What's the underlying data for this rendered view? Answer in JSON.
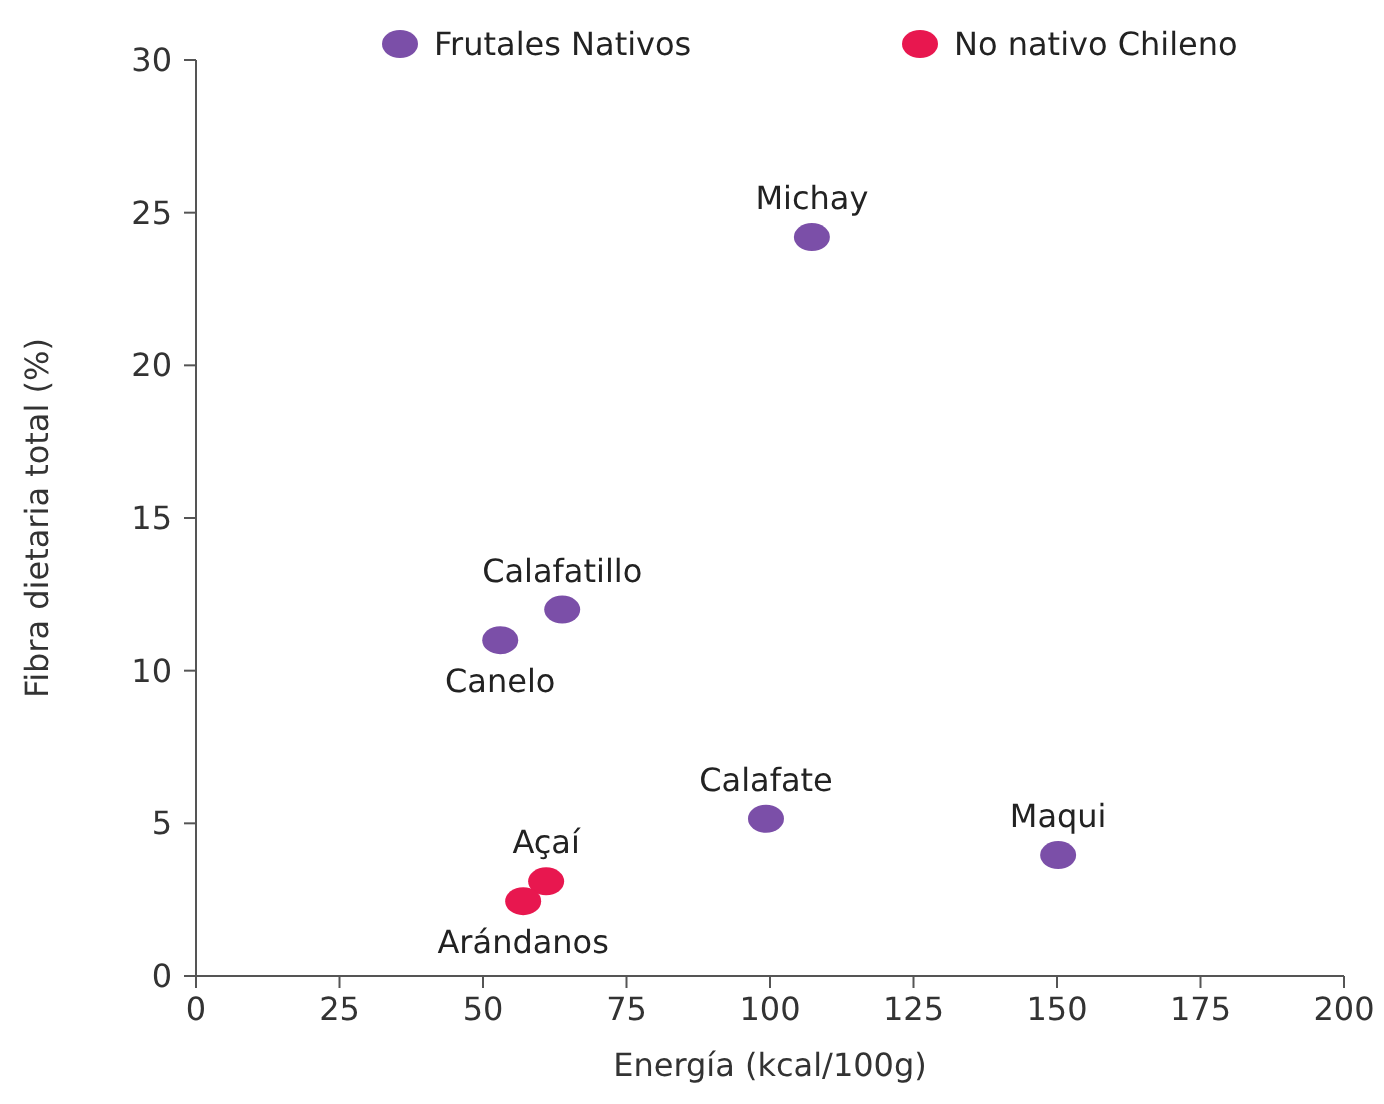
{
  "chart_data": {
    "type": "scatter",
    "xlabel": "Energía (kcal/100g)",
    "ylabel": "Fibra dietaria total (%)",
    "xlim": [
      0,
      200
    ],
    "xticks": [
      0,
      25,
      50,
      75,
      100,
      125,
      150,
      175,
      200
    ],
    "ylim": [
      0,
      30
    ],
    "yticks": [
      0,
      5,
      10,
      15,
      20,
      25,
      30
    ],
    "grid": false,
    "legend": "top",
    "marker": "circle",
    "series": [
      {
        "name": "Frutales Nativos",
        "color": "#7b4fa8",
        "x": [
          107.3,
          63.8,
          53,
          99.3,
          150.2
        ],
        "values": [
          24.2,
          12,
          11,
          5.15,
          3.96
        ]
      },
      {
        "name": "No nativo Chileno",
        "color": "#e8174f",
        "x": [
          61,
          57
        ],
        "values": [
          3.1,
          2.45
        ]
      }
    ],
    "annotations": [
      {
        "text": "Michay",
        "x": 107.3,
        "y": 24.2
      },
      {
        "text": "Calafatillo",
        "x": 63.8,
        "y": 12
      },
      {
        "text": "Canelo",
        "x": 53,
        "y": 11
      },
      {
        "text": "Calafate",
        "x": 99.3,
        "y": 5.15
      },
      {
        "text": "Maqui",
        "x": 150.2,
        "y": 3.96
      },
      {
        "text": "Açaí",
        "x": 61,
        "y": 3.1
      },
      {
        "text": "Arándanos",
        "x": 57,
        "y": 2.45
      }
    ]
  }
}
